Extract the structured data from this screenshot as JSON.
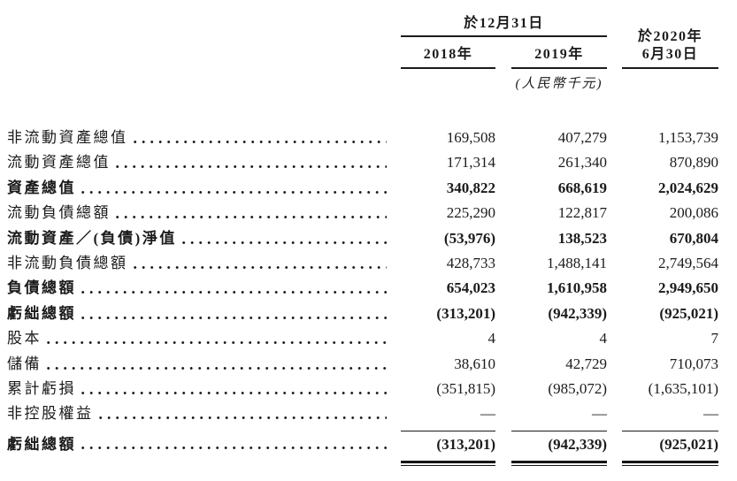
{
  "page": {
    "background_color": "#ffffff",
    "text_color": "#1b1b1b"
  },
  "table": {
    "header": {
      "date_group": "於12月31日",
      "col1": "2018年",
      "col2": "2019年",
      "col3_year": "於2020年",
      "col3_date": "6月30日",
      "unit_note": "(人民幣千元)"
    },
    "rows": [
      {
        "label": "非流動資產總值",
        "bold": false,
        "v1": "169,508",
        "v2": "407,279",
        "v3": "1,153,739"
      },
      {
        "label": "流動資產總值",
        "bold": false,
        "v1": "171,314",
        "v2": "261,340",
        "v3": "870,890"
      },
      {
        "label": "資產總值",
        "bold": true,
        "v1": "340,822",
        "v2": "668,619",
        "v3": "2,024,629"
      },
      {
        "label": "流動負債總額",
        "bold": false,
        "v1": "225,290",
        "v2": "122,817",
        "v3": "200,086"
      },
      {
        "label": "流動資產／(負債)淨值",
        "bold": true,
        "v1": "(53,976)",
        "v2": "138,523",
        "v3": "670,804"
      },
      {
        "label": "非流動負債總額",
        "bold": false,
        "v1": "428,733",
        "v2": "1,488,141",
        "v3": "2,749,564"
      },
      {
        "label": "負債總額",
        "bold": true,
        "v1": "654,023",
        "v2": "1,610,958",
        "v3": "2,949,650"
      },
      {
        "label": "虧絀總額",
        "bold": true,
        "v1": "(313,201)",
        "v2": "(942,339)",
        "v3": "(925,021)"
      },
      {
        "label": "股本",
        "bold": false,
        "v1": "4",
        "v2": "4",
        "v3": "7"
      },
      {
        "label": "儲備",
        "bold": false,
        "v1": "38,610",
        "v2": "42,729",
        "v3": "710,073"
      },
      {
        "label": "累計虧損",
        "bold": false,
        "v1": "(351,815)",
        "v2": "(985,072)",
        "v3": "(1,635,101)"
      },
      {
        "label": "非控股權益",
        "bold": false,
        "v1": "—",
        "v2": "—",
        "v3": "—"
      }
    ],
    "total_row": {
      "label": "虧絀總額",
      "v1": "(313,201)",
      "v2": "(942,339)",
      "v3": "(925,021)"
    }
  }
}
